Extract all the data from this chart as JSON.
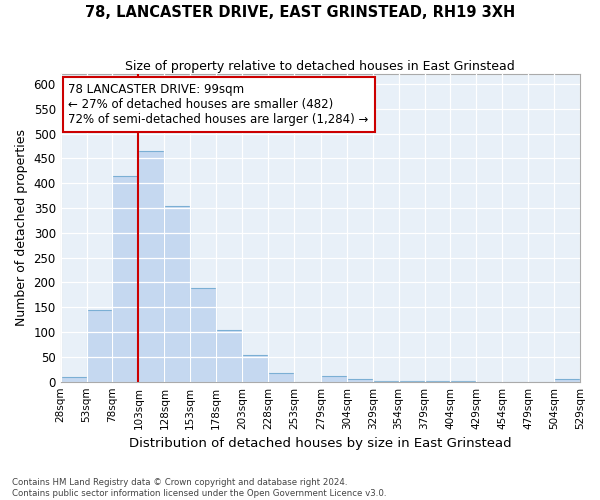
{
  "title": "78, LANCASTER DRIVE, EAST GRINSTEAD, RH19 3XH",
  "subtitle": "Size of property relative to detached houses in East Grinstead",
  "xlabel": "Distribution of detached houses by size in East Grinstead",
  "ylabel": "Number of detached properties",
  "bar_color": "#c5d8f0",
  "bar_edge_color": "#7bafd4",
  "background_color": "#e8f0f8",
  "grid_color": "#ffffff",
  "property_line_x": 103,
  "property_line_color": "#cc0000",
  "annotation_text": "78 LANCASTER DRIVE: 99sqm\n← 27% of detached houses are smaller (482)\n72% of semi-detached houses are larger (1,284) →",
  "annotation_box_color": "#ffffff",
  "annotation_box_edge_color": "#cc0000",
  "bin_edges": [
    28,
    53,
    78,
    103,
    128,
    153,
    178,
    203,
    228,
    253,
    279,
    304,
    329,
    354,
    379,
    404,
    429,
    454,
    479,
    504,
    529
  ],
  "bar_heights": [
    10,
    145,
    415,
    465,
    355,
    188,
    105,
    53,
    18,
    0,
    12,
    5,
    2,
    1,
    1,
    1,
    0,
    0,
    0,
    5
  ],
  "ylim": [
    0,
    620
  ],
  "yticks": [
    0,
    50,
    100,
    150,
    200,
    250,
    300,
    350,
    400,
    450,
    500,
    550,
    600
  ],
  "footer_text": "Contains HM Land Registry data © Crown copyright and database right 2024.\nContains public sector information licensed under the Open Government Licence v3.0.",
  "figsize": [
    6.0,
    5.0
  ],
  "dpi": 100
}
